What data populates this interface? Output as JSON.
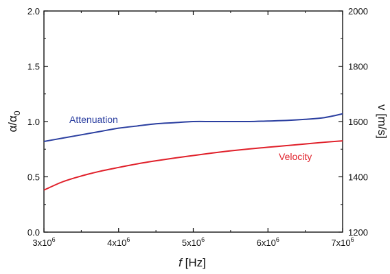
{
  "chart_data": {
    "type": "line",
    "x": {
      "label_italic": "f",
      "label_rest": " [Hz]",
      "range": [
        3000000,
        7000000
      ],
      "ticks": [
        {
          "value": 3000000,
          "base": "3x10",
          "exp": "6"
        },
        {
          "value": 4000000,
          "base": "4x10",
          "exp": "6"
        },
        {
          "value": 5000000,
          "base": "5x10",
          "exp": "6"
        },
        {
          "value": 6000000,
          "base": "6x10",
          "exp": "6"
        },
        {
          "value": 7000000,
          "base": "7x10",
          "exp": "6"
        }
      ]
    },
    "y_left": {
      "label_alpha": "α/α",
      "label_sub": "0",
      "range": [
        0,
        2
      ],
      "ticks": [
        "0.0",
        "0.5",
        "1.0",
        "1.5",
        "2.0"
      ]
    },
    "y_right": {
      "label": "v [m/s]",
      "range": [
        1200,
        2000
      ],
      "ticks": [
        "1200",
        "1400",
        "1600",
        "1800",
        "2000"
      ]
    },
    "series": [
      {
        "name": "Attenuation",
        "axis": "left",
        "color": "#2b3fa0",
        "x": [
          3000000,
          3250000,
          3500000,
          3750000,
          4000000,
          4250000,
          4500000,
          4750000,
          5000000,
          5250000,
          5500000,
          5750000,
          6000000,
          6250000,
          6500000,
          6750000,
          7000000
        ],
        "y": [
          0.82,
          0.85,
          0.88,
          0.91,
          0.94,
          0.96,
          0.98,
          0.99,
          1.0,
          1.0,
          1.0,
          1.0,
          1.005,
          1.01,
          1.02,
          1.035,
          1.07
        ]
      },
      {
        "name": "Velocity",
        "axis": "right",
        "color": "#e0202a",
        "x": [
          3000000,
          3250000,
          3500000,
          3750000,
          4000000,
          4250000,
          4500000,
          4750000,
          5000000,
          5250000,
          5500000,
          5750000,
          6000000,
          6250000,
          6500000,
          6750000,
          7000000
        ],
        "y": [
          1352,
          1382,
          1403,
          1420,
          1434,
          1447,
          1458,
          1468,
          1477,
          1486,
          1494,
          1501,
          1507,
          1513,
          1519,
          1525,
          1530
        ]
      }
    ],
    "labels": {
      "attenuation": "Attenuation",
      "velocity": "Velocity"
    },
    "grid": false
  }
}
